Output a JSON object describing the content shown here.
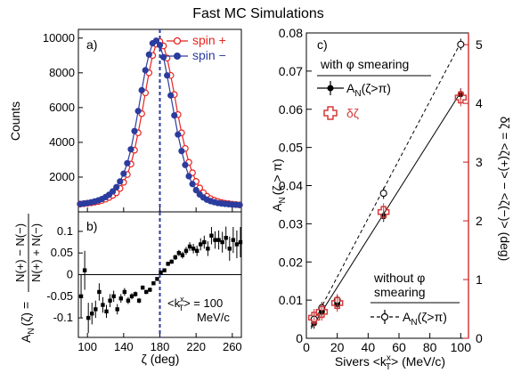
{
  "figure": {
    "title": "Fast MC Simulations",
    "colors": {
      "spin_plus": "#e8231f",
      "spin_minus": "#2b3c9e",
      "delta_zeta": "#d43a3a",
      "axis": "#000000",
      "dashed_line": "#2b3c9e"
    }
  },
  "chart_data": [
    {
      "panel_label": "a)",
      "type": "scatter",
      "xlim": [
        90,
        270
      ],
      "ylim": [
        0,
        10500
      ],
      "yticks": [
        2000,
        4000,
        6000,
        8000,
        10000
      ],
      "ylabel": "Counts",
      "vline_x": 180,
      "series": [
        {
          "name": "spin +",
          "marker": "open-circle",
          "x": [
            92,
            96,
            100,
            104,
            108,
            112,
            116,
            120,
            124,
            128,
            132,
            136,
            140,
            144,
            148,
            152,
            156,
            160,
            164,
            168,
            172,
            176,
            180,
            184,
            188,
            192,
            196,
            200,
            204,
            208,
            212,
            216,
            220,
            224,
            228,
            232,
            236,
            240,
            244,
            248,
            252,
            256,
            260,
            264,
            268
          ],
          "y": [
            450,
            470,
            500,
            520,
            560,
            600,
            660,
            730,
            830,
            950,
            1100,
            1350,
            1700,
            2150,
            2750,
            3550,
            4550,
            5650,
            6850,
            8000,
            9000,
            9650,
            9800,
            9550,
            8850,
            7850,
            6750,
            5600,
            4550,
            3650,
            2850,
            2250,
            1750,
            1380,
            1100,
            900,
            760,
            670,
            600,
            540,
            500,
            470,
            440,
            420,
            400
          ]
        },
        {
          "name": "spin −",
          "marker": "filled-circle",
          "x": [
            92,
            96,
            100,
            104,
            108,
            112,
            116,
            120,
            124,
            128,
            132,
            136,
            140,
            144,
            148,
            152,
            156,
            160,
            164,
            168,
            172,
            176,
            180,
            184,
            188,
            192,
            196,
            200,
            204,
            208,
            212,
            216,
            220,
            224,
            228,
            232,
            236,
            240,
            244,
            248,
            252,
            256,
            260,
            264,
            268
          ],
          "y": [
            450,
            480,
            510,
            550,
            600,
            660,
            740,
            850,
            990,
            1180,
            1420,
            1750,
            2200,
            2800,
            3600,
            4650,
            5800,
            7000,
            8150,
            9050,
            9700,
            9850,
            9600,
            8900,
            7850,
            6700,
            5550,
            4450,
            3500,
            2700,
            2050,
            1600,
            1250,
            1000,
            830,
            700,
            620,
            560,
            510,
            480,
            460,
            440,
            420,
            410,
            400
          ]
        }
      ]
    },
    {
      "panel_label": "b)",
      "type": "scatter",
      "xlim": [
        90,
        270
      ],
      "ylim": [
        -0.145,
        0.145
      ],
      "xticks": [
        100,
        140,
        180,
        220,
        260
      ],
      "yticks": [
        -0.1,
        -0.05,
        0,
        0.05,
        0.1
      ],
      "ytick_labels": [
        "-0.1",
        "-0.05",
        "0",
        "0.05",
        "0.1"
      ],
      "ylabel_left": "A",
      "ylabel_sub": "N",
      "ylabel_arg": "(ζ) =",
      "ylabel_num": "N(+) − N(−)",
      "ylabel_den": "N(+) + N(−)",
      "xlabel": "ζ (deg)",
      "vline_x": 180,
      "annotation_line1": "<k",
      "annotation_sup": "x",
      "annotation_sub": "T",
      "annotation_rest": "> = 100",
      "annotation_line2": "MeV/c",
      "series": [
        {
          "name": "A_N",
          "marker": "filled-square",
          "x": [
            93,
            97,
            101,
            105,
            109,
            113,
            117,
            121,
            125,
            129,
            133,
            137,
            141,
            145,
            149,
            153,
            157,
            161,
            165,
            169,
            173,
            177,
            181,
            185,
            189,
            193,
            197,
            201,
            205,
            209,
            213,
            217,
            221,
            225,
            229,
            233,
            237,
            241,
            245,
            249,
            253,
            257,
            261,
            265,
            269
          ],
          "y": [
            -0.05,
            0.01,
            -0.1,
            -0.09,
            -0.08,
            -0.04,
            -0.07,
            -0.085,
            -0.06,
            -0.05,
            -0.08,
            -0.055,
            -0.04,
            -0.06,
            -0.05,
            -0.045,
            -0.06,
            -0.03,
            -0.04,
            -0.035,
            -0.02,
            -0.01,
            0.005,
            0.01,
            0.025,
            0.03,
            0.04,
            0.05,
            0.045,
            0.055,
            0.065,
            0.06,
            0.055,
            0.07,
            0.075,
            0.06,
            0.09,
            0.08,
            0.08,
            0.075,
            0.085,
            0.06,
            0.08,
            0.07,
            0.075
          ],
          "err": [
            0.05,
            0.045,
            0.035,
            0.025,
            0.02,
            0.02,
            0.018,
            0.015,
            0.015,
            0.013,
            0.012,
            0.01,
            0.009,
            0.008,
            0.007,
            0.006,
            0.006,
            0.005,
            0.005,
            0.005,
            0.004,
            0.004,
            0.004,
            0.004,
            0.005,
            0.005,
            0.006,
            0.007,
            0.008,
            0.009,
            0.01,
            0.011,
            0.012,
            0.014,
            0.015,
            0.017,
            0.02,
            0.02,
            0.022,
            0.024,
            0.026,
            0.028,
            0.03,
            0.032,
            0.035
          ]
        }
      ]
    },
    {
      "panel_label": "c)",
      "type": "scatter",
      "xlim": [
        0,
        105
      ],
      "ylim": [
        0,
        0.08
      ],
      "xticks": [
        0,
        20,
        40,
        60,
        80,
        100
      ],
      "yticks": [
        0,
        0.01,
        0.02,
        0.03,
        0.04,
        0.05,
        0.06,
        0.07,
        0.08
      ],
      "ytick_labels": [
        "0",
        "0.01",
        "0.02",
        "0.03",
        "0.04",
        "0.05",
        "0.06",
        "0.07",
        "0.08"
      ],
      "y2lim": [
        0,
        5.2
      ],
      "y2ticks": [
        0,
        1,
        2,
        3,
        4,
        5
      ],
      "ylabel_main": "A",
      "ylabel_sub": "N",
      "ylabel_arg": "(ζ > π)",
      "y2label": "δζ = <ζ(+)> − <ζ(−)> (deg)",
      "xlabel_main": "Sivers <k",
      "xlabel_sup": "x",
      "xlabel_sub": "T",
      "xlabel_rest": "> (MeV/c)",
      "legend_with_title": "with φ smearing",
      "legend_an_main": "A",
      "legend_an_sub": "N",
      "legend_an_arg": "(ζ>π)",
      "legend_dz": "δζ",
      "legend_without_1": "without φ",
      "legend_without_2": "smearing",
      "series": [
        {
          "name": "A_N(ζ>π) with φ smearing",
          "marker": "filled-circle",
          "axis": "left",
          "x": [
            5,
            10,
            20,
            50,
            100
          ],
          "y": [
            0.004,
            0.007,
            0.009,
            0.032,
            0.064
          ],
          "err": [
            0.0015,
            0.0015,
            0.0015,
            0.0015,
            0.0015
          ]
        },
        {
          "name": "A_N(ζ>π) without φ smearing",
          "marker": "open-circle",
          "axis": "left",
          "x": [
            5,
            10,
            20,
            50,
            100
          ],
          "y": [
            0.005,
            0.008,
            0.01,
            0.038,
            0.077
          ],
          "err": [
            0.0015,
            0.0015,
            0.0015,
            0.0015,
            0.0015
          ]
        },
        {
          "name": "δζ",
          "marker": "open-cross",
          "axis": "right",
          "x": [
            5,
            10,
            20,
            50,
            100
          ],
          "y": [
            0.35,
            0.45,
            0.6,
            2.15,
            4.1
          ],
          "err": [
            0.15,
            0.15,
            0.15,
            0.15,
            0.15
          ]
        }
      ],
      "fit_lines": [
        {
          "name": "with smearing fit",
          "style": "solid",
          "x": [
            3,
            100
          ],
          "y": [
            0.0025,
            0.0645
          ]
        },
        {
          "name": "without smearing fit",
          "style": "dashed",
          "x": [
            3,
            100
          ],
          "y": [
            0.003,
            0.0775
          ]
        }
      ]
    }
  ]
}
